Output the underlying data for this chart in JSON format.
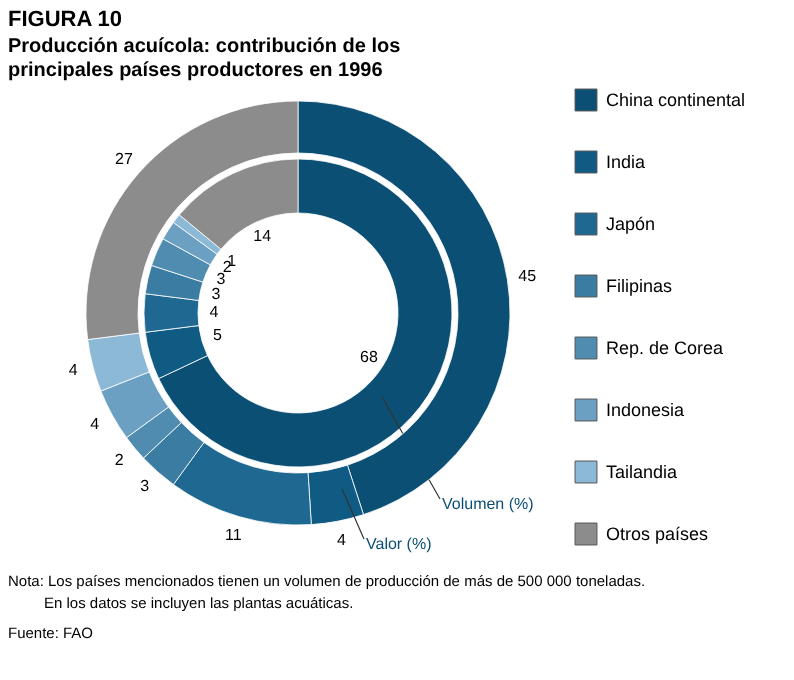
{
  "chart_data": {
    "type": "donut",
    "title": "FIGURA 10",
    "subtitle": "Producción acuícola: contribución de los principales países productores en 1996",
    "categories": [
      "China continental",
      "India",
      "Japón",
      "Filipinas",
      "Rep. de Corea",
      "Indonesia",
      "Tailandia",
      "Otros países"
    ],
    "colors": [
      "#0b4f74",
      "#0f5b84",
      "#1e6891",
      "#3a7ca2",
      "#4f8cb0",
      "#6ba0c2",
      "#8cbad6",
      "#8c8c8c"
    ],
    "series": [
      {
        "name": "Volumen (%)",
        "values": [
          68,
          5,
          4,
          3,
          3,
          2,
          1,
          14
        ]
      },
      {
        "name": "Valor (%)",
        "values": [
          45,
          4,
          11,
          3,
          2,
          4,
          4,
          27
        ]
      }
    ],
    "data_labels": true,
    "legend": "right",
    "annotations": [
      "Nota: Los países mencionados tienen un volumen de producción de más de 500 000 toneladas.",
      "En los datos se incluyen las plantas acuáticas.",
      "Fuente: FAO"
    ]
  }
}
